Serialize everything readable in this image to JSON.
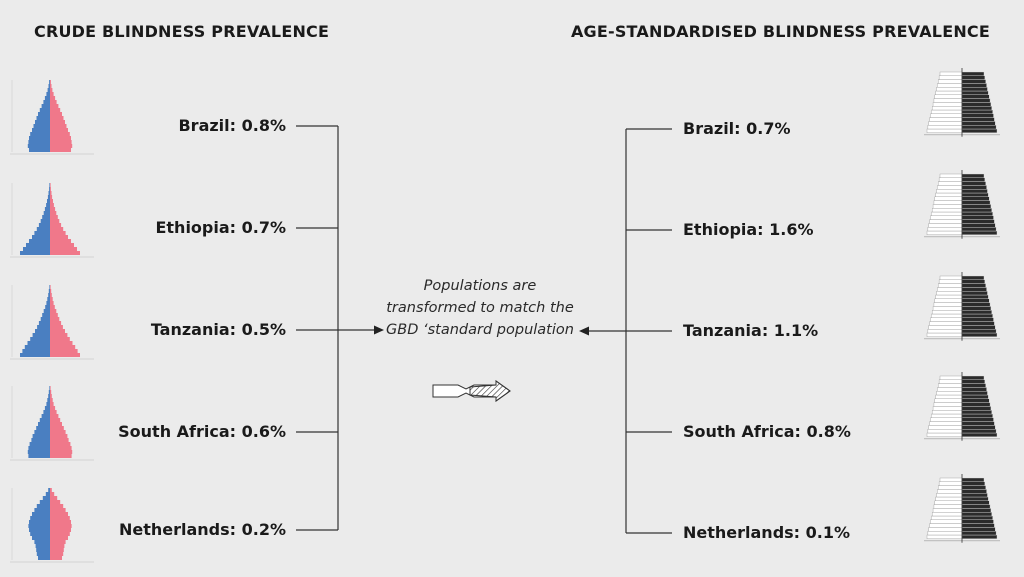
{
  "left_heading": "CRUDE BLINDNESS PREVALENCE",
  "right_heading": "AGE-STANDARDISED BLINDNESS PREVALENCE",
  "crude": [
    {
      "label": "Brazil: 0.8%"
    },
    {
      "label": "Ethiopia: 0.7%"
    },
    {
      "label": "Tanzania: 0.5%"
    },
    {
      "label": "South Africa: 0.6%"
    },
    {
      "label": "Netherlands: 0.2%"
    }
  ],
  "standardised": [
    {
      "label": "Brazil: 0.7%"
    },
    {
      "label": "Ethiopia: 1.6%"
    },
    {
      "label": "Tanzania: 1.1%"
    },
    {
      "label": "South Africa: 0.8%"
    },
    {
      "label": "Netherlands: 0.1%"
    }
  ],
  "middle_text": "Populations are transformed to match the GBD ‘standard population",
  "colors": {
    "male": "#4a7fc1",
    "female": "#f0788a",
    "standard_left": "#ffffff",
    "standard_right": "#2b2b2b",
    "line": "#333333"
  },
  "icons": {
    "left_pyramid": "population-pyramid-icon",
    "right_pyramid": "standard-population-pyramid-icon",
    "transform": "transform-arrow-icon"
  }
}
